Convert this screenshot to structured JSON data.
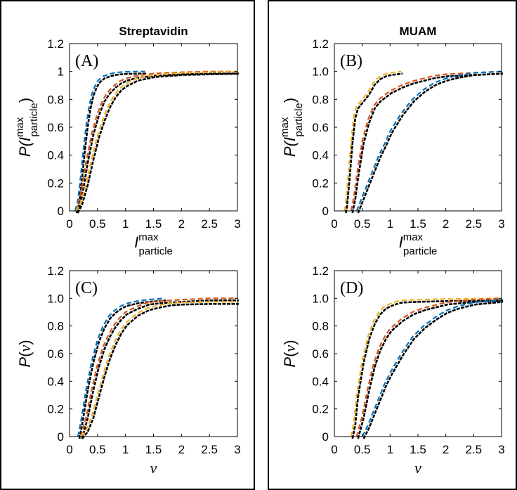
{
  "chart_data": [
    {
      "type": "line",
      "panel_label": "(A)",
      "title": "Streptavidin",
      "xlabel": "I_particle^max",
      "ylabel": "P(I_particle^max)",
      "xlim": [
        0,
        3
      ],
      "ylim": [
        0,
        1.2
      ],
      "xticks": [
        "0",
        "0.5",
        "1",
        "1.5",
        "2",
        "2.5",
        "3"
      ],
      "yticks": [
        "0",
        "0.2",
        "0.4",
        "0.6",
        "0.8",
        "1",
        "1.2"
      ],
      "series": [
        {
          "color": "#0072BD",
          "x": [
            0.1,
            0.15,
            0.2,
            0.25,
            0.3,
            0.35,
            0.4,
            0.45,
            0.5,
            0.55,
            0.6,
            0.7,
            0.8,
            0.9,
            1.0,
            1.2,
            1.35
          ],
          "y": [
            0.0,
            0.08,
            0.25,
            0.45,
            0.62,
            0.75,
            0.84,
            0.89,
            0.93,
            0.95,
            0.965,
            0.98,
            0.99,
            0.995,
            0.998,
            1.0,
            1.0
          ]
        },
        {
          "color": "#D95319",
          "x": [
            0.12,
            0.2,
            0.3,
            0.4,
            0.5,
            0.6,
            0.7,
            0.8,
            0.9,
            1.0,
            1.2,
            1.5,
            2.0,
            2.5,
            3.0
          ],
          "y": [
            0.0,
            0.12,
            0.36,
            0.56,
            0.7,
            0.8,
            0.86,
            0.9,
            0.93,
            0.95,
            0.97,
            0.985,
            0.995,
            1.0,
            1.0
          ]
        },
        {
          "color": "#EDB120",
          "x": [
            0.12,
            0.2,
            0.3,
            0.4,
            0.5,
            0.6,
            0.7,
            0.8,
            0.9,
            1.0,
            1.2,
            1.5,
            2.0,
            2.5,
            3.0
          ],
          "y": [
            0.0,
            0.06,
            0.2,
            0.38,
            0.54,
            0.66,
            0.76,
            0.83,
            0.88,
            0.91,
            0.95,
            0.975,
            0.99,
            0.995,
            1.0
          ]
        }
      ]
    },
    {
      "type": "line",
      "panel_label": "(B)",
      "title": "MUAM",
      "xlabel": "I_particle^max",
      "ylabel": "P(I_particle^max)",
      "xlim": [
        0,
        3
      ],
      "ylim": [
        0,
        1.2
      ],
      "xticks": [
        "0",
        "0.5",
        "1",
        "1.5",
        "2",
        "2.5",
        "3"
      ],
      "yticks": [
        "0",
        "0.2",
        "0.4",
        "0.6",
        "0.8",
        "1.0",
        "1.2"
      ],
      "series": [
        {
          "color": "#EDB120",
          "x": [
            0.18,
            0.2,
            0.25,
            0.3,
            0.35,
            0.4,
            0.5,
            0.6,
            0.7,
            0.8,
            0.9,
            1.0,
            1.1,
            1.2
          ],
          "y": [
            0.0,
            0.04,
            0.25,
            0.5,
            0.68,
            0.75,
            0.8,
            0.85,
            0.92,
            0.96,
            0.98,
            0.99,
            0.995,
            1.0
          ]
        },
        {
          "color": "#D95319",
          "x": [
            0.3,
            0.35,
            0.4,
            0.5,
            0.6,
            0.7,
            0.8,
            0.9,
            1.0,
            1.2,
            1.4,
            1.6,
            1.8,
            2.0,
            2.5,
            3.0
          ],
          "y": [
            0.0,
            0.1,
            0.25,
            0.5,
            0.65,
            0.75,
            0.8,
            0.83,
            0.86,
            0.9,
            0.93,
            0.95,
            0.97,
            0.98,
            0.99,
            1.0
          ]
        },
        {
          "color": "#0072BD",
          "x": [
            0.4,
            0.5,
            0.6,
            0.7,
            0.8,
            0.9,
            1.0,
            1.2,
            1.4,
            1.6,
            1.8,
            2.0,
            2.2,
            2.5,
            3.0
          ],
          "y": [
            0.0,
            0.1,
            0.2,
            0.3,
            0.4,
            0.48,
            0.57,
            0.7,
            0.8,
            0.87,
            0.92,
            0.95,
            0.97,
            0.99,
            1.0
          ]
        }
      ]
    },
    {
      "type": "line",
      "panel_label": "(C)",
      "title": "",
      "xlabel": "v",
      "ylabel": "P(v)",
      "xlim": [
        0,
        3
      ],
      "ylim": [
        0,
        1.2
      ],
      "xticks": [
        "0",
        "0.5",
        "1",
        "1.5",
        "2",
        "2.5",
        "3"
      ],
      "yticks": [
        "0",
        "0.2",
        "0.4",
        "0.6",
        "0.8",
        "1.0",
        "1.2"
      ],
      "series": [
        {
          "color": "#0072BD",
          "x": [
            0.15,
            0.2,
            0.3,
            0.4,
            0.5,
            0.6,
            0.7,
            0.8,
            0.9,
            1.0,
            1.2,
            1.4,
            1.7
          ],
          "y": [
            0.0,
            0.1,
            0.35,
            0.55,
            0.7,
            0.8,
            0.87,
            0.91,
            0.94,
            0.96,
            0.98,
            0.99,
            1.0
          ]
        },
        {
          "color": "#D95319",
          "x": [
            0.2,
            0.3,
            0.4,
            0.5,
            0.6,
            0.7,
            0.8,
            0.9,
            1.0,
            1.2,
            1.4,
            1.6,
            2.0,
            2.5,
            3.0
          ],
          "y": [
            0.0,
            0.15,
            0.35,
            0.52,
            0.65,
            0.74,
            0.81,
            0.86,
            0.9,
            0.94,
            0.97,
            0.98,
            0.99,
            1.0,
            1.0
          ]
        },
        {
          "color": "#EDB120",
          "x": [
            0.2,
            0.3,
            0.4,
            0.5,
            0.6,
            0.7,
            0.8,
            0.9,
            1.0,
            1.2,
            1.4,
            1.6,
            1.8,
            2.0,
            2.5,
            3.0
          ],
          "y": [
            0.0,
            0.05,
            0.15,
            0.3,
            0.45,
            0.58,
            0.68,
            0.76,
            0.82,
            0.89,
            0.93,
            0.95,
            0.965,
            0.97,
            0.975,
            0.975
          ]
        }
      ]
    },
    {
      "type": "line",
      "panel_label": "(D)",
      "title": "",
      "xlabel": "v",
      "ylabel": "P(v)",
      "xlim": [
        0,
        3
      ],
      "ylim": [
        0,
        1.2
      ],
      "xticks": [
        "0",
        "0.5",
        "1",
        "1.5",
        "2",
        "2.5",
        "3"
      ],
      "yticks": [
        "0",
        "0.2",
        "0.4",
        "0.6",
        "0.8",
        "1.0",
        "1.2"
      ],
      "series": [
        {
          "color": "#EDB120",
          "x": [
            0.3,
            0.35,
            0.4,
            0.5,
            0.6,
            0.7,
            0.8,
            0.9,
            1.0,
            1.1,
            1.2,
            1.5,
            2.0,
            3.0
          ],
          "y": [
            0.0,
            0.1,
            0.3,
            0.55,
            0.72,
            0.83,
            0.9,
            0.94,
            0.96,
            0.975,
            0.985,
            0.99,
            0.995,
            1.0
          ]
        },
        {
          "color": "#D95319",
          "x": [
            0.4,
            0.5,
            0.6,
            0.7,
            0.8,
            0.9,
            1.0,
            1.2,
            1.4,
            1.6,
            1.8,
            2.0,
            2.5,
            3.0
          ],
          "y": [
            0.0,
            0.15,
            0.35,
            0.52,
            0.64,
            0.72,
            0.78,
            0.85,
            0.9,
            0.93,
            0.95,
            0.97,
            0.99,
            1.0
          ]
        },
        {
          "color": "#0072BD",
          "x": [
            0.5,
            0.6,
            0.7,
            0.8,
            0.9,
            1.0,
            1.2,
            1.4,
            1.6,
            1.8,
            2.0,
            2.2,
            2.5,
            3.0
          ],
          "y": [
            0.0,
            0.08,
            0.18,
            0.28,
            0.38,
            0.46,
            0.6,
            0.72,
            0.8,
            0.86,
            0.91,
            0.94,
            0.97,
            0.99
          ]
        }
      ]
    }
  ]
}
